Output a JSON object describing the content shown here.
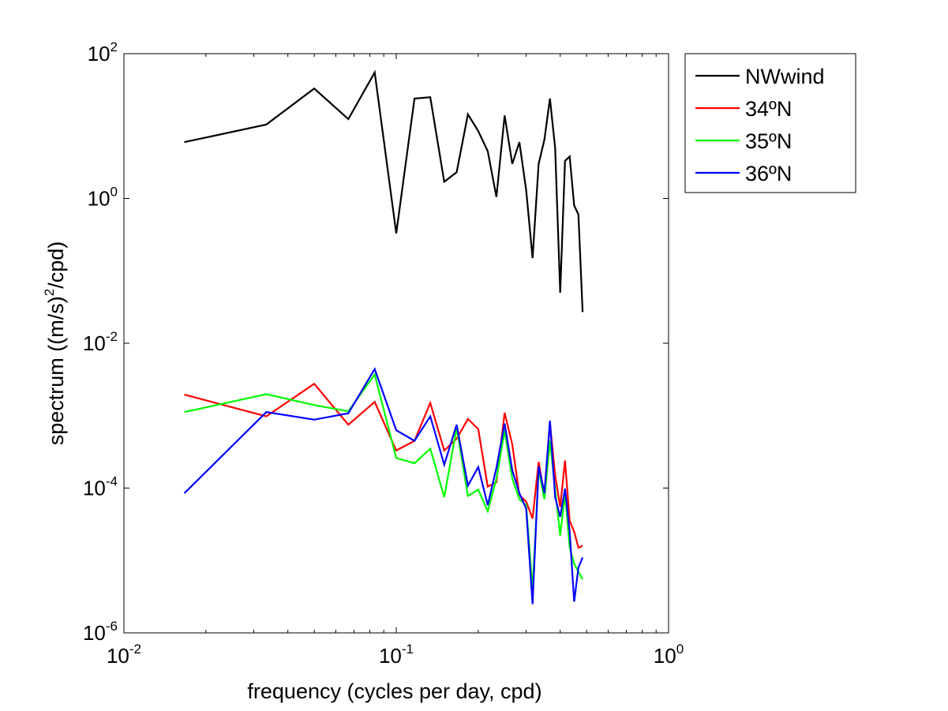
{
  "chart_data": {
    "type": "line",
    "title": "",
    "xlabel": "frequency (cycles per day, cpd)",
    "ylabel_parts": [
      "spectrum ((m/s)",
      "2",
      "/cpd)"
    ],
    "xscale": "log",
    "yscale": "log",
    "xlim": [
      0.01,
      1
    ],
    "ylim": [
      1e-06,
      100
    ],
    "grid": false,
    "legend_position": "outside-top-right",
    "x_ticks": [
      {
        "value": 0.01,
        "base": "10",
        "exp": "-2"
      },
      {
        "value": 0.1,
        "base": "10",
        "exp": "-1"
      },
      {
        "value": 1,
        "base": "10",
        "exp": "0"
      }
    ],
    "y_ticks": [
      {
        "value": 1e-06,
        "base": "10",
        "exp": "-6"
      },
      {
        "value": 0.0001,
        "base": "10",
        "exp": "-4"
      },
      {
        "value": 0.01,
        "base": "10",
        "exp": "-2"
      },
      {
        "value": 1,
        "base": "10",
        "exp": "0"
      },
      {
        "value": 100,
        "base": "10",
        "exp": "2"
      }
    ],
    "x": [
      0.01667,
      0.03333,
      0.05,
      0.06667,
      0.08333,
      0.1,
      0.11667,
      0.13333,
      0.15,
      0.16667,
      0.18333,
      0.2,
      0.21667,
      0.23333,
      0.25,
      0.26667,
      0.28333,
      0.3,
      0.31667,
      0.33333,
      0.35,
      0.36667,
      0.38333,
      0.4,
      0.41667,
      0.43333,
      0.45,
      0.46667,
      0.48333
    ],
    "series": [
      {
        "name": "NWwind",
        "color": "#000000",
        "values": [
          6.0,
          10.5,
          33,
          12.5,
          55,
          0.33,
          24,
          25,
          1.7,
          2.3,
          14.5,
          8.5,
          4.5,
          1.05,
          14,
          3.0,
          6.0,
          1.3,
          0.15,
          3.0,
          6.5,
          24,
          5.0,
          0.05,
          3.3,
          3.8,
          0.8,
          0.6,
          0.027
        ]
      },
      {
        "name": "34ºN",
        "color": "#ff0000",
        "values": [
          0.00195,
          0.00098,
          0.00275,
          0.00075,
          0.00155,
          0.00033,
          0.00045,
          0.0015,
          0.00033,
          0.00048,
          0.0009,
          0.00065,
          0.000105,
          0.00012,
          0.0011,
          0.0004,
          8e-05,
          6.5e-05,
          3.8e-05,
          0.00023,
          8e-05,
          0.0008,
          0.00015,
          5.5e-05,
          0.00024,
          3.5e-05,
          2.5e-05,
          1.5e-05,
          1.6e-05
        ]
      },
      {
        "name": "35ºN",
        "color": "#00ff00",
        "values": [
          0.00112,
          0.00198,
          0.0014,
          0.00115,
          0.0037,
          0.00026,
          0.00022,
          0.00035,
          7.5e-05,
          0.00068,
          7.8e-05,
          9.5e-05,
          4.8e-05,
          0.000135,
          0.00062,
          0.000135,
          7e-05,
          5.8e-05,
          4e-06,
          0.00018,
          7e-05,
          0.00045,
          9.5e-05,
          2.2e-05,
          8.5e-05,
          1.5e-05,
          9e-06,
          7e-06,
          5.5e-06
        ]
      },
      {
        "name": "36ºN",
        "color": "#0000ff",
        "values": [
          8.5e-05,
          0.00112,
          0.00088,
          0.00108,
          0.0044,
          0.00063,
          0.00045,
          0.00098,
          0.00021,
          0.00075,
          0.000108,
          0.000195,
          5.8e-05,
          0.00019,
          0.00078,
          0.000175,
          8.5e-05,
          5.2e-05,
          2.5e-06,
          0.0002,
          8.5e-05,
          0.00085,
          7.5e-05,
          4e-05,
          9.8e-05,
          2.5e-05,
          2.7e-06,
          8e-06,
          1.1e-05
        ]
      }
    ]
  }
}
